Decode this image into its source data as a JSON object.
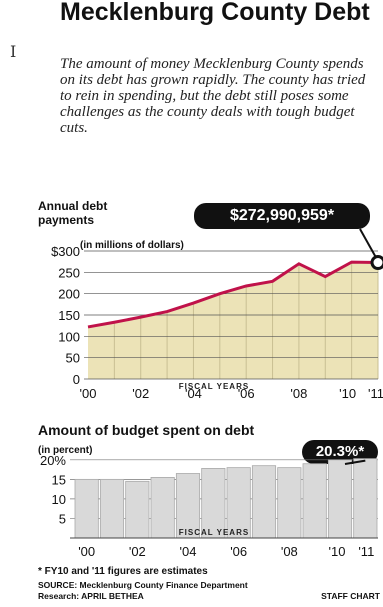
{
  "title": "Mecklenburg County Debt",
  "intro": "The amount of money Mecklenburg County spends on its debt has grown rapidly. The county has tried to rein in spending, but the debt still poses some challenges as the county deals with tough budget cuts.",
  "colors": {
    "fill": "#ece3b7",
    "grid": "#c9bf93",
    "line": "#c0124a",
    "bar": "#d9d9d9",
    "bar_stroke": "#a9a9a9",
    "callout": "#111111"
  },
  "chart_data": [
    {
      "type": "area",
      "title": "Annual debt payments",
      "unit": "(in millions of dollars)",
      "y_ticks": [
        "$300",
        "250",
        "200",
        "150",
        "100",
        "50",
        "0"
      ],
      "x_tick_labels": [
        "'00",
        "'02",
        "'04",
        "'06",
        "'08",
        "'10",
        "'11"
      ],
      "axis_note": "FISCAL YEARS",
      "ylim": [
        0,
        300
      ],
      "x": [
        2000,
        2001,
        2002,
        2003,
        2004,
        2005,
        2006,
        2007,
        2008,
        2009,
        2010,
        2011
      ],
      "values": [
        122,
        133,
        145,
        158,
        178,
        200,
        218,
        229,
        270,
        240,
        274,
        273
      ],
      "callout": "$272,990,959*"
    },
    {
      "type": "bar",
      "title": "Amount of budget spent on debt",
      "unit": "(in percent)",
      "y_ticks": [
        "20%",
        "15",
        "10",
        "5"
      ],
      "x_tick_labels": [
        "'00",
        "'02",
        "'04",
        "'06",
        "'08",
        "'10",
        "'11"
      ],
      "axis_note": "FISCAL YEARS",
      "ylim": [
        0,
        22
      ],
      "x": [
        2000,
        2001,
        2002,
        2003,
        2004,
        2005,
        2006,
        2007,
        2008,
        2009,
        2010,
        2011
      ],
      "values": [
        15,
        15,
        14.5,
        15.5,
        16.5,
        17.8,
        18,
        18.5,
        18,
        19,
        20,
        20.3
      ],
      "callout": "20.3%*"
    }
  ],
  "footnote": "* FY10 and '11 figures are estimates",
  "source": "SOURCE: Mecklenburg County Finance Department",
  "research": "Research: APRIL BETHEA",
  "credit": "STAFF CHART"
}
